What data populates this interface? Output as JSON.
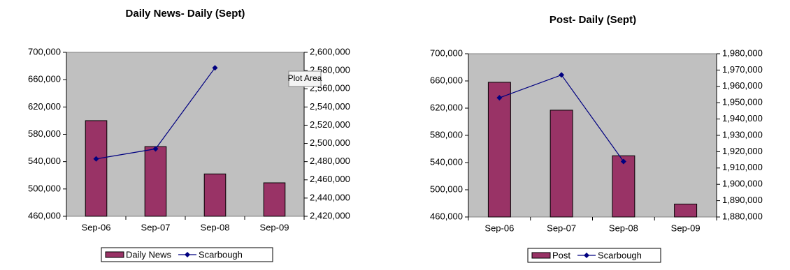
{
  "chart_data": [
    {
      "type": "bar",
      "title": "Daily News- Daily (Sept)",
      "tooltip": "Plot Area",
      "categories": [
        "Sep-06",
        "Sep-07",
        "Sep-08",
        "Sep-09"
      ],
      "plot_background": "#c0c0c0",
      "series": [
        {
          "name": "Daily News",
          "color": "#993366",
          "type": "bar",
          "values": [
            600000,
            562000,
            522000,
            509000
          ]
        },
        {
          "name": "Scarbough",
          "color": "#000080",
          "type": "line",
          "axis": "y2",
          "values": [
            2483000,
            2494000,
            2583000,
            null
          ]
        }
      ],
      "ylim": [
        460000,
        700000
      ],
      "yticks": [
        {
          "value": 460000,
          "label": "460,000"
        },
        {
          "value": 500000,
          "label": "500,000"
        },
        {
          "value": 540000,
          "label": "540,000"
        },
        {
          "value": 580000,
          "label": "580,000"
        },
        {
          "value": 620000,
          "label": "620,000"
        },
        {
          "value": 660000,
          "label": "660,000"
        },
        {
          "value": 700000,
          "label": "700,000"
        }
      ],
      "y2lim": [
        2420000,
        2600000
      ],
      "y2ticks": [
        {
          "value": 2420000,
          "label": "2,420,000"
        },
        {
          "value": 2440000,
          "label": "2,440,000"
        },
        {
          "value": 2460000,
          "label": "2,460,000"
        },
        {
          "value": 2480000,
          "label": "2,480,000"
        },
        {
          "value": 2500000,
          "label": "2,500,000"
        },
        {
          "value": 2520000,
          "label": "2,520,000"
        },
        {
          "value": 2540000,
          "label": "2,540,000"
        },
        {
          "value": 2560000,
          "label": "2,560,000"
        },
        {
          "value": 2580000,
          "label": "2,580,000"
        },
        {
          "value": 2600000,
          "label": "2,600,000"
        }
      ],
      "legend": "bottom"
    },
    {
      "type": "bar",
      "title": "Post- Daily (Sept)",
      "categories": [
        "Sep-06",
        "Sep-07",
        "Sep-08",
        "Sep-09"
      ],
      "plot_background": "#c0c0c0",
      "series": [
        {
          "name": "Post",
          "color": "#993366",
          "type": "bar",
          "values": [
            658000,
            617000,
            550000,
            479000
          ]
        },
        {
          "name": "Scarbough",
          "color": "#000080",
          "type": "line",
          "axis": "y2",
          "values": [
            1953000,
            1967000,
            1914000,
            null
          ]
        }
      ],
      "ylim": [
        460000,
        700000
      ],
      "yticks": [
        {
          "value": 460000,
          "label": "460,000"
        },
        {
          "value": 500000,
          "label": "500,000"
        },
        {
          "value": 540000,
          "label": "540,000"
        },
        {
          "value": 580000,
          "label": "580,000"
        },
        {
          "value": 620000,
          "label": "620,000"
        },
        {
          "value": 660000,
          "label": "660,000"
        },
        {
          "value": 700000,
          "label": "700,000"
        }
      ],
      "y2lim": [
        1880000,
        1980000
      ],
      "y2ticks": [
        {
          "value": 1880000,
          "label": "1,880,000"
        },
        {
          "value": 1890000,
          "label": "1,890,000"
        },
        {
          "value": 1900000,
          "label": "1,900,000"
        },
        {
          "value": 1910000,
          "label": "1,910,000"
        },
        {
          "value": 1920000,
          "label": "1,920,000"
        },
        {
          "value": 1930000,
          "label": "1,930,000"
        },
        {
          "value": 1940000,
          "label": "1,940,000"
        },
        {
          "value": 1950000,
          "label": "1,950,000"
        },
        {
          "value": 1960000,
          "label": "1,960,000"
        },
        {
          "value": 1970000,
          "label": "1,970,000"
        },
        {
          "value": 1980000,
          "label": "1,980,000"
        }
      ],
      "legend": "bottom"
    }
  ]
}
